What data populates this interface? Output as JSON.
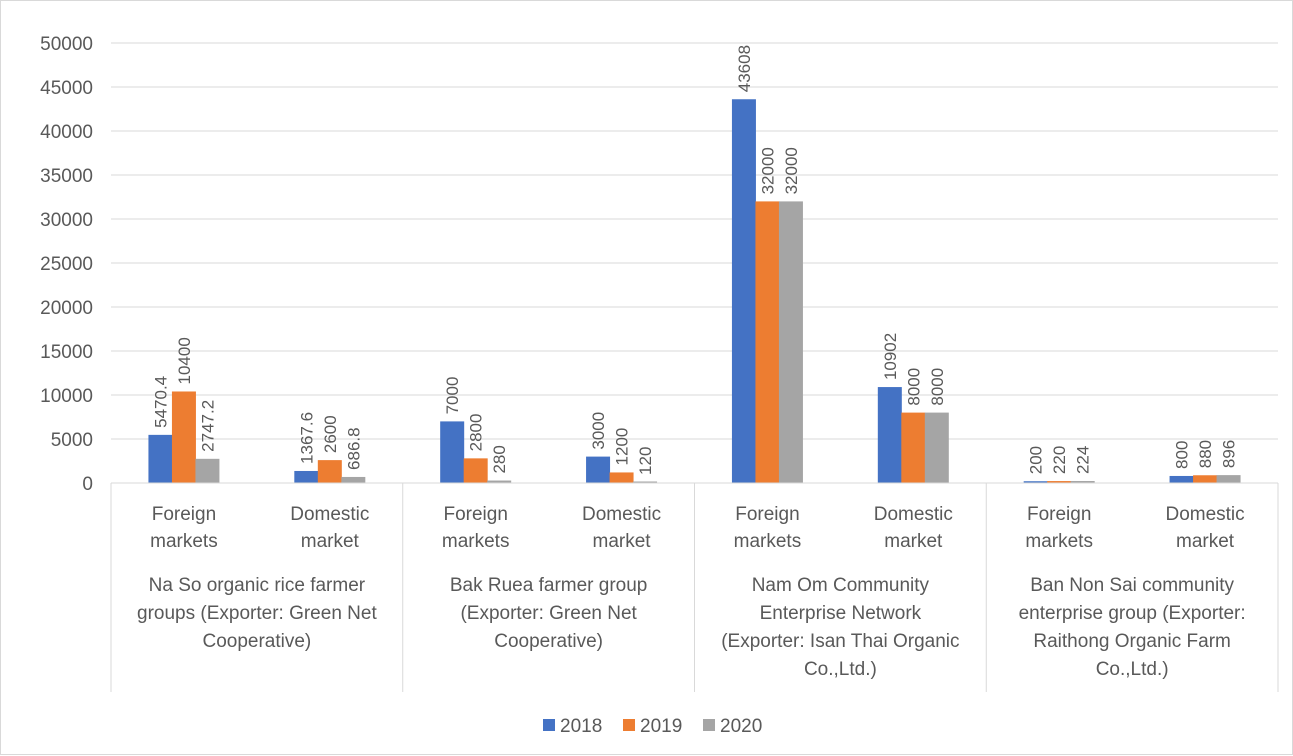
{
  "chart_data": {
    "type": "bar",
    "title": "",
    "xlabel": "",
    "ylabel": "",
    "ylim": [
      0,
      50000
    ],
    "yticks": [
      0,
      5000,
      10000,
      15000,
      20000,
      25000,
      30000,
      35000,
      40000,
      45000,
      50000
    ],
    "grid": true,
    "legend_position": "bottom",
    "groups": [
      {
        "label_lines": [
          "Na So organic rice farmer",
          "groups (Exporter: Green Net",
          "Cooperative)"
        ]
      },
      {
        "label_lines": [
          "Bak Ruea farmer group",
          "(Exporter: Green Net",
          "Cooperative)"
        ]
      },
      {
        "label_lines": [
          "Nam Om Community",
          "Enterprise Network",
          "(Exporter: Isan Thai Organic",
          "Co.,Ltd.)"
        ]
      },
      {
        "label_lines": [
          "Ban Non Sai community",
          "enterprise group  (Exporter:",
          "Raithong Organic Farm",
          "Co.,Ltd.)"
        ]
      }
    ],
    "categories": [
      {
        "lines": [
          "Foreign",
          "markets"
        ]
      },
      {
        "lines": [
          "Domestic",
          "market"
        ]
      },
      {
        "lines": [
          "Foreign",
          "markets"
        ]
      },
      {
        "lines": [
          "Domestic",
          "market"
        ]
      },
      {
        "lines": [
          "Foreign",
          "markets"
        ]
      },
      {
        "lines": [
          "Domestic",
          "market"
        ]
      },
      {
        "lines": [
          "Foreign",
          "markets"
        ]
      },
      {
        "lines": [
          "Domestic",
          "market"
        ]
      }
    ],
    "series": [
      {
        "name": "2018",
        "color": "#4472c4",
        "values": [
          5470.4,
          1367.6,
          7000,
          3000,
          43608,
          10902,
          200,
          800
        ]
      },
      {
        "name": "2019",
        "color": "#ed7d31",
        "values": [
          10400,
          2600,
          2800,
          1200,
          32000,
          8000,
          220,
          880
        ]
      },
      {
        "name": "2020",
        "color": "#a5a5a5",
        "values": [
          2747.2,
          686.8,
          280,
          120,
          32000,
          8000,
          224,
          896
        ]
      }
    ]
  }
}
